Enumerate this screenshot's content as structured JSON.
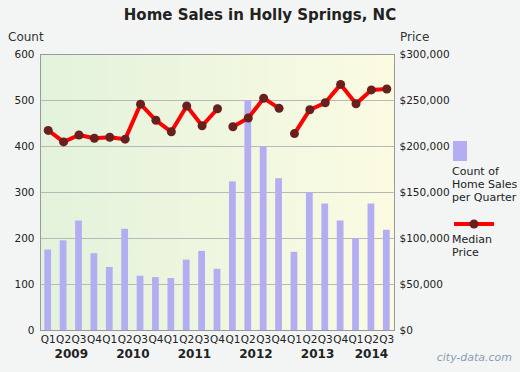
{
  "chart_data": {
    "type": "bar",
    "title": "Home Sales in Holly Springs, NC",
    "categories": [
      "Q1",
      "Q2",
      "Q3",
      "Q4",
      "Q1",
      "Q2",
      "Q3",
      "Q4",
      "Q1",
      "Q2",
      "Q3",
      "Q4",
      "Q1",
      "Q2",
      "Q3",
      "Q4",
      "Q1",
      "Q2",
      "Q3",
      "Q4",
      "Q1",
      "Q2",
      "Q3"
    ],
    "years": [
      {
        "label": "2009",
        "count": 4
      },
      {
        "label": "2010",
        "count": 4
      },
      {
        "label": "2011",
        "count": 4
      },
      {
        "label": "2012",
        "count": 4
      },
      {
        "label": "2013",
        "count": 4
      },
      {
        "label": "2014",
        "count": 3
      }
    ],
    "series": [
      {
        "name": "Count of Home Sales per Quarter",
        "type": "bar",
        "color": "#b3aef2",
        "values": [
          175,
          195,
          238,
          167,
          137,
          220,
          118,
          115,
          113,
          153,
          172,
          133,
          323,
          500,
          400,
          330,
          170,
          300,
          275,
          238,
          200,
          275,
          218
        ]
      },
      {
        "name": "Median Price",
        "type": "line",
        "color": "#ff0000",
        "marker": "circle",
        "axis": "y2",
        "values": [
          217500,
          205000,
          212500,
          209000,
          210000,
          208000,
          246000,
          228500,
          216000,
          244000,
          222500,
          241000,
          221500,
          231000,
          252500,
          241500,
          214000,
          240000,
          247500,
          267500,
          246500,
          261500,
          262500
        ],
        "segments": [
          12,
          4,
          7
        ]
      }
    ],
    "ylabel": "Count",
    "y2label": "Price",
    "ylim": [
      0,
      600
    ],
    "yticks": [
      0,
      100,
      200,
      300,
      400,
      500,
      600
    ],
    "y2lim": [
      0,
      300000
    ],
    "y2ticks": [
      {
        "value": 0,
        "label": "$0"
      },
      {
        "value": 50000,
        "label": "$50,000"
      },
      {
        "value": 100000,
        "label": "$100,000"
      },
      {
        "value": 150000,
        "label": "$150,000"
      },
      {
        "value": 200000,
        "label": "$200,000"
      },
      {
        "value": 250000,
        "label": "$250,000"
      },
      {
        "value": 300000,
        "label": "$300,000"
      }
    ],
    "grid": true,
    "legend": "right",
    "watermark": "city-data.com"
  }
}
